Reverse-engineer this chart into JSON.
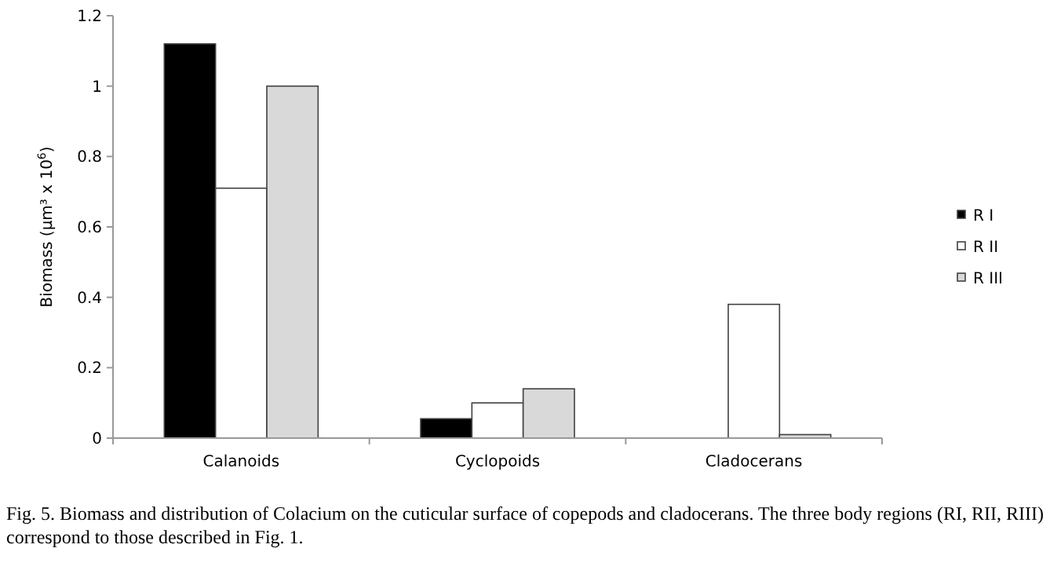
{
  "chart_data": {
    "type": "bar",
    "ylabel": "Biomass (µm³ x 10$^{6}$)",
    "categories": [
      "Calanoids",
      "Cyclopoids",
      "Cladocerans"
    ],
    "series": [
      {
        "name": "R I",
        "color": "#000000",
        "values": [
          1.12,
          0.055,
          0
        ]
      },
      {
        "name": "R II",
        "color": "#ffffff",
        "values": [
          0.71,
          0.1,
          0.38
        ]
      },
      {
        "name": "R III",
        "color": "#d9d9d9",
        "values": [
          1.0,
          0.14,
          0.01
        ]
      }
    ],
    "ylim": [
      0,
      1.2
    ],
    "yticks": [
      0,
      0.2,
      0.4,
      0.6,
      0.8,
      1,
      1.2
    ],
    "grid": false,
    "legend": "right",
    "annotations": [
      "Fig. 5. Biomass and distribution of Colacium on the cuticular surface of copepods and cladocerans. The three body regions (RI, RII, RIII) correspond to those described in Fig. 1."
    ]
  }
}
